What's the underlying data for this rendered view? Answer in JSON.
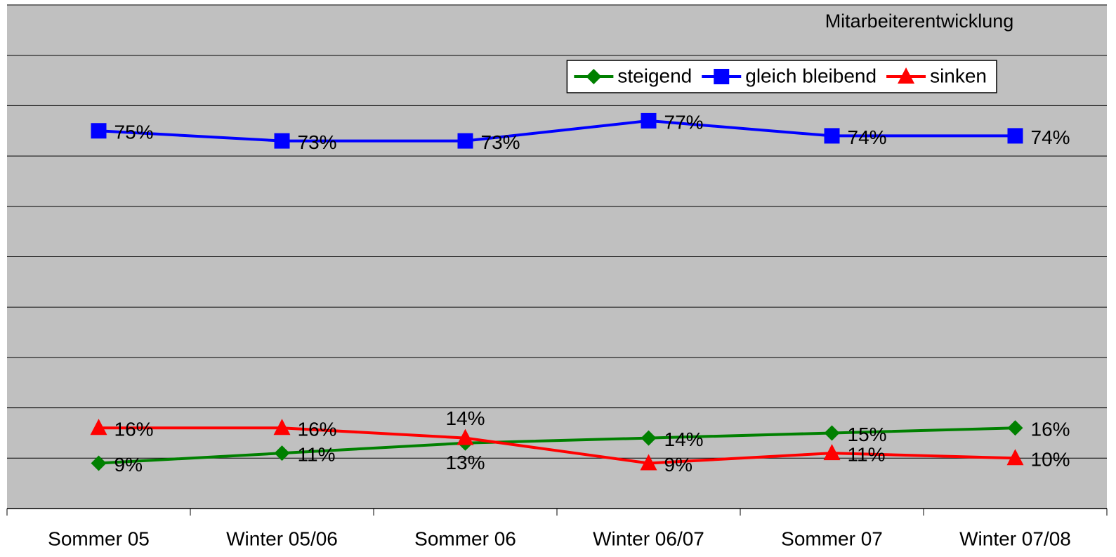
{
  "chart_data": {
    "type": "line",
    "title": "Mitarbeiterentwicklung",
    "categories": [
      "Sommer 05",
      "Winter 05/06",
      "Sommer 06",
      "Winter 06/07",
      "Sommer 07",
      "Winter 07/08"
    ],
    "series": [
      {
        "name": "steigend",
        "color": "#008000",
        "marker": "diamond",
        "values": [
          9,
          11,
          13,
          14,
          15,
          16
        ],
        "value_labels": [
          "9%",
          "11%",
          "13%",
          "14%",
          "15%",
          "16%"
        ]
      },
      {
        "name": "gleich bleibend",
        "color": "#0000ff",
        "marker": "square",
        "values": [
          75,
          73,
          73,
          77,
          74,
          74
        ],
        "value_labels": [
          "75%",
          "73%",
          "73%",
          "77%",
          "74%",
          "74%"
        ]
      },
      {
        "name": "sinken",
        "color": "#ff0000",
        "marker": "triangle",
        "values": [
          16,
          16,
          14,
          9,
          11,
          10
        ],
        "value_labels": [
          "16%",
          "16%",
          "14%",
          "9%",
          "11%",
          "10%"
        ]
      }
    ],
    "ylim": [
      0,
      100
    ],
    "yticks": [
      0,
      10,
      20,
      30,
      40,
      50,
      60,
      70,
      80,
      90,
      100
    ],
    "grid": true,
    "legend": "top-right",
    "background": "#c0c0c0"
  }
}
